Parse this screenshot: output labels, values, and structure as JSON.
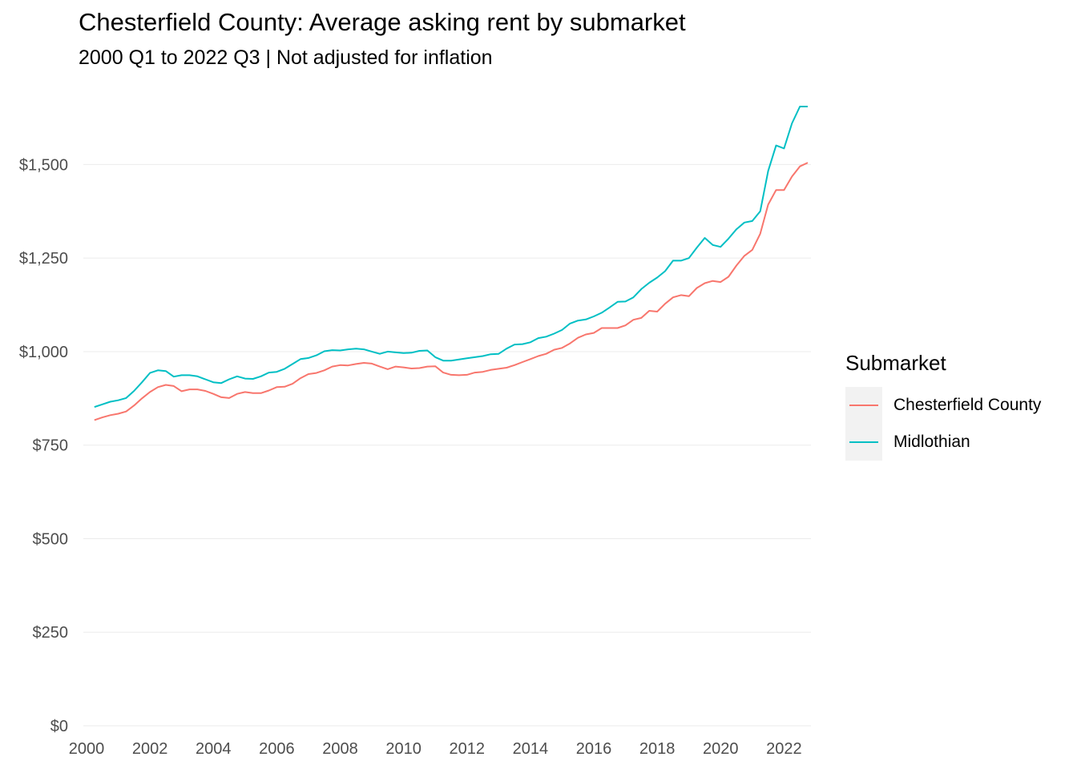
{
  "chart_data": {
    "type": "line",
    "title": "Chesterfield County: Average asking rent by submarket",
    "subtitle": "2000 Q1 to 2022 Q3 | Not adjusted for inflation",
    "xlabel": "",
    "ylabel": "",
    "xlim": [
      1999.9,
      2022.85
    ],
    "ylim": [
      0,
      1700
    ],
    "x_ticks": [
      2000,
      2002,
      2004,
      2006,
      2008,
      2010,
      2012,
      2014,
      2016,
      2018,
      2020,
      2022
    ],
    "x_tick_labels": [
      "2000",
      "2002",
      "2004",
      "2006",
      "2008",
      "2010",
      "2012",
      "2014",
      "2016",
      "2018",
      "2020",
      "2022"
    ],
    "y_ticks": [
      0,
      250,
      500,
      750,
      1000,
      1250,
      1500
    ],
    "y_tick_labels": [
      "$0",
      "$250",
      "$500",
      "$750",
      "$1,000",
      "$1,250",
      "$1,500"
    ],
    "grid": true,
    "legend": {
      "title": "Submarket",
      "position": "right"
    },
    "series": [
      {
        "name": "Chesterfield County",
        "color": "#F8766D",
        "points": [
          [
            2000.25,
            817
          ],
          [
            2000.5,
            824
          ],
          [
            2000.75,
            830
          ],
          [
            2001.0,
            834
          ],
          [
            2001.25,
            840
          ],
          [
            2001.5,
            856
          ],
          [
            2001.75,
            875
          ],
          [
            2002.0,
            892
          ],
          [
            2002.25,
            905
          ],
          [
            2002.5,
            911
          ],
          [
            2002.75,
            908
          ],
          [
            2003.0,
            894
          ],
          [
            2003.25,
            899
          ],
          [
            2003.5,
            899
          ],
          [
            2003.75,
            895
          ],
          [
            2004.0,
            887
          ],
          [
            2004.25,
            878
          ],
          [
            2004.5,
            876
          ],
          [
            2004.75,
            887
          ],
          [
            2005.0,
            892
          ],
          [
            2005.25,
            889
          ],
          [
            2005.5,
            889
          ],
          [
            2005.75,
            896
          ],
          [
            2006.0,
            905
          ],
          [
            2006.25,
            906
          ],
          [
            2006.5,
            914
          ],
          [
            2006.75,
            929
          ],
          [
            2007.0,
            940
          ],
          [
            2007.25,
            943
          ],
          [
            2007.5,
            950
          ],
          [
            2007.75,
            960
          ],
          [
            2008.0,
            964
          ],
          [
            2008.25,
            963
          ],
          [
            2008.5,
            967
          ],
          [
            2008.75,
            970
          ],
          [
            2009.0,
            968
          ],
          [
            2009.25,
            960
          ],
          [
            2009.5,
            953
          ],
          [
            2009.75,
            960
          ],
          [
            2010.0,
            958
          ],
          [
            2010.25,
            955
          ],
          [
            2010.5,
            956
          ],
          [
            2010.75,
            960
          ],
          [
            2011.0,
            961
          ],
          [
            2011.25,
            944
          ],
          [
            2011.5,
            938
          ],
          [
            2011.75,
            937
          ],
          [
            2012.0,
            938
          ],
          [
            2012.25,
            944
          ],
          [
            2012.5,
            946
          ],
          [
            2012.75,
            951
          ],
          [
            2013.0,
            954
          ],
          [
            2013.25,
            957
          ],
          [
            2013.5,
            964
          ],
          [
            2013.75,
            972
          ],
          [
            2014.0,
            980
          ],
          [
            2014.25,
            988
          ],
          [
            2014.5,
            994
          ],
          [
            2014.75,
            1005
          ],
          [
            2015.0,
            1010
          ],
          [
            2015.25,
            1022
          ],
          [
            2015.5,
            1037
          ],
          [
            2015.75,
            1046
          ],
          [
            2016.0,
            1050
          ],
          [
            2016.25,
            1063
          ],
          [
            2016.5,
            1063
          ],
          [
            2016.75,
            1063
          ],
          [
            2017.0,
            1070
          ],
          [
            2017.25,
            1085
          ],
          [
            2017.5,
            1090
          ],
          [
            2017.75,
            1109
          ],
          [
            2018.0,
            1107
          ],
          [
            2018.25,
            1128
          ],
          [
            2018.5,
            1145
          ],
          [
            2018.75,
            1151
          ],
          [
            2019.0,
            1148
          ],
          [
            2019.25,
            1170
          ],
          [
            2019.5,
            1183
          ],
          [
            2019.75,
            1189
          ],
          [
            2020.0,
            1186
          ],
          [
            2020.25,
            1200
          ],
          [
            2020.5,
            1230
          ],
          [
            2020.75,
            1256
          ],
          [
            2021.0,
            1272
          ],
          [
            2021.25,
            1315
          ],
          [
            2021.5,
            1393
          ],
          [
            2021.75,
            1432
          ],
          [
            2022.0,
            1432
          ],
          [
            2022.25,
            1468
          ],
          [
            2022.5,
            1495
          ],
          [
            2022.75,
            1505
          ]
        ]
      },
      {
        "name": "Midlothian",
        "color": "#00BFC4",
        "points": [
          [
            2000.25,
            852
          ],
          [
            2000.5,
            859
          ],
          [
            2000.75,
            866
          ],
          [
            2001.0,
            870
          ],
          [
            2001.25,
            876
          ],
          [
            2001.5,
            895
          ],
          [
            2001.75,
            918
          ],
          [
            2002.0,
            943
          ],
          [
            2002.25,
            950
          ],
          [
            2002.5,
            948
          ],
          [
            2002.75,
            933
          ],
          [
            2003.0,
            937
          ],
          [
            2003.25,
            937
          ],
          [
            2003.5,
            934
          ],
          [
            2003.75,
            926
          ],
          [
            2004.0,
            918
          ],
          [
            2004.25,
            916
          ],
          [
            2004.5,
            926
          ],
          [
            2004.75,
            934
          ],
          [
            2005.0,
            928
          ],
          [
            2005.25,
            927
          ],
          [
            2005.5,
            934
          ],
          [
            2005.75,
            944
          ],
          [
            2006.0,
            946
          ],
          [
            2006.25,
            954
          ],
          [
            2006.5,
            967
          ],
          [
            2006.75,
            980
          ],
          [
            2007.0,
            983
          ],
          [
            2007.25,
            990
          ],
          [
            2007.5,
            1001
          ],
          [
            2007.75,
            1004
          ],
          [
            2008.0,
            1003
          ],
          [
            2008.25,
            1006
          ],
          [
            2008.5,
            1008
          ],
          [
            2008.75,
            1006
          ],
          [
            2009.0,
            1000
          ],
          [
            2009.25,
            994
          ],
          [
            2009.5,
            1000
          ],
          [
            2009.75,
            998
          ],
          [
            2010.0,
            996
          ],
          [
            2010.25,
            997
          ],
          [
            2010.5,
            1002
          ],
          [
            2010.75,
            1003
          ],
          [
            2011.0,
            985
          ],
          [
            2011.25,
            976
          ],
          [
            2011.5,
            976
          ],
          [
            2011.75,
            979
          ],
          [
            2012.0,
            982
          ],
          [
            2012.25,
            985
          ],
          [
            2012.5,
            988
          ],
          [
            2012.75,
            993
          ],
          [
            2013.0,
            994
          ],
          [
            2013.25,
            1008
          ],
          [
            2013.5,
            1019
          ],
          [
            2013.75,
            1020
          ],
          [
            2014.0,
            1025
          ],
          [
            2014.25,
            1036
          ],
          [
            2014.5,
            1040
          ],
          [
            2014.75,
            1048
          ],
          [
            2015.0,
            1058
          ],
          [
            2015.25,
            1075
          ],
          [
            2015.5,
            1083
          ],
          [
            2015.75,
            1086
          ],
          [
            2016.0,
            1094
          ],
          [
            2016.25,
            1104
          ],
          [
            2016.5,
            1118
          ],
          [
            2016.75,
            1133
          ],
          [
            2017.0,
            1134
          ],
          [
            2017.25,
            1145
          ],
          [
            2017.5,
            1167
          ],
          [
            2017.75,
            1184
          ],
          [
            2018.0,
            1198
          ],
          [
            2018.25,
            1215
          ],
          [
            2018.5,
            1243
          ],
          [
            2018.75,
            1243
          ],
          [
            2019.0,
            1250
          ],
          [
            2019.25,
            1278
          ],
          [
            2019.5,
            1304
          ],
          [
            2019.75,
            1285
          ],
          [
            2020.0,
            1280
          ],
          [
            2020.25,
            1302
          ],
          [
            2020.5,
            1327
          ],
          [
            2020.75,
            1345
          ],
          [
            2021.0,
            1349
          ],
          [
            2021.25,
            1375
          ],
          [
            2021.5,
            1483
          ],
          [
            2021.75,
            1551
          ],
          [
            2022.0,
            1543
          ],
          [
            2022.25,
            1610
          ],
          [
            2022.5,
            1655
          ],
          [
            2022.75,
            1655
          ]
        ]
      }
    ]
  }
}
